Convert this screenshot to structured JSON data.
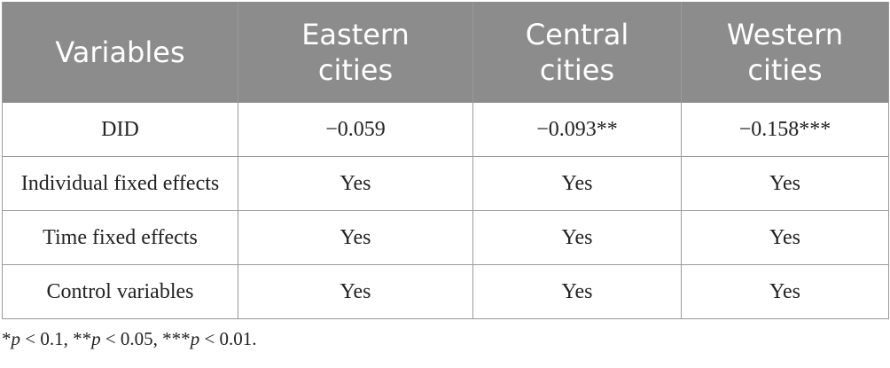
{
  "table": {
    "header": [
      "Variables",
      "Eastern cities",
      "Central cities",
      "Western cities"
    ],
    "rows": [
      [
        "DID",
        "−0.059",
        "−0.093**",
        "−0.158***"
      ],
      [
        "Individual fixed effects",
        "Yes",
        "Yes",
        "Yes"
      ],
      [
        "Time fixed effects",
        "Yes",
        "Yes",
        "Yes"
      ],
      [
        "Control variables",
        "Yes",
        "Yes",
        "Yes"
      ]
    ]
  },
  "footnote": [
    "*",
    "p",
    " < 0.1, **",
    "p",
    " < 0.05, ***",
    "p",
    " < 0.01."
  ]
}
